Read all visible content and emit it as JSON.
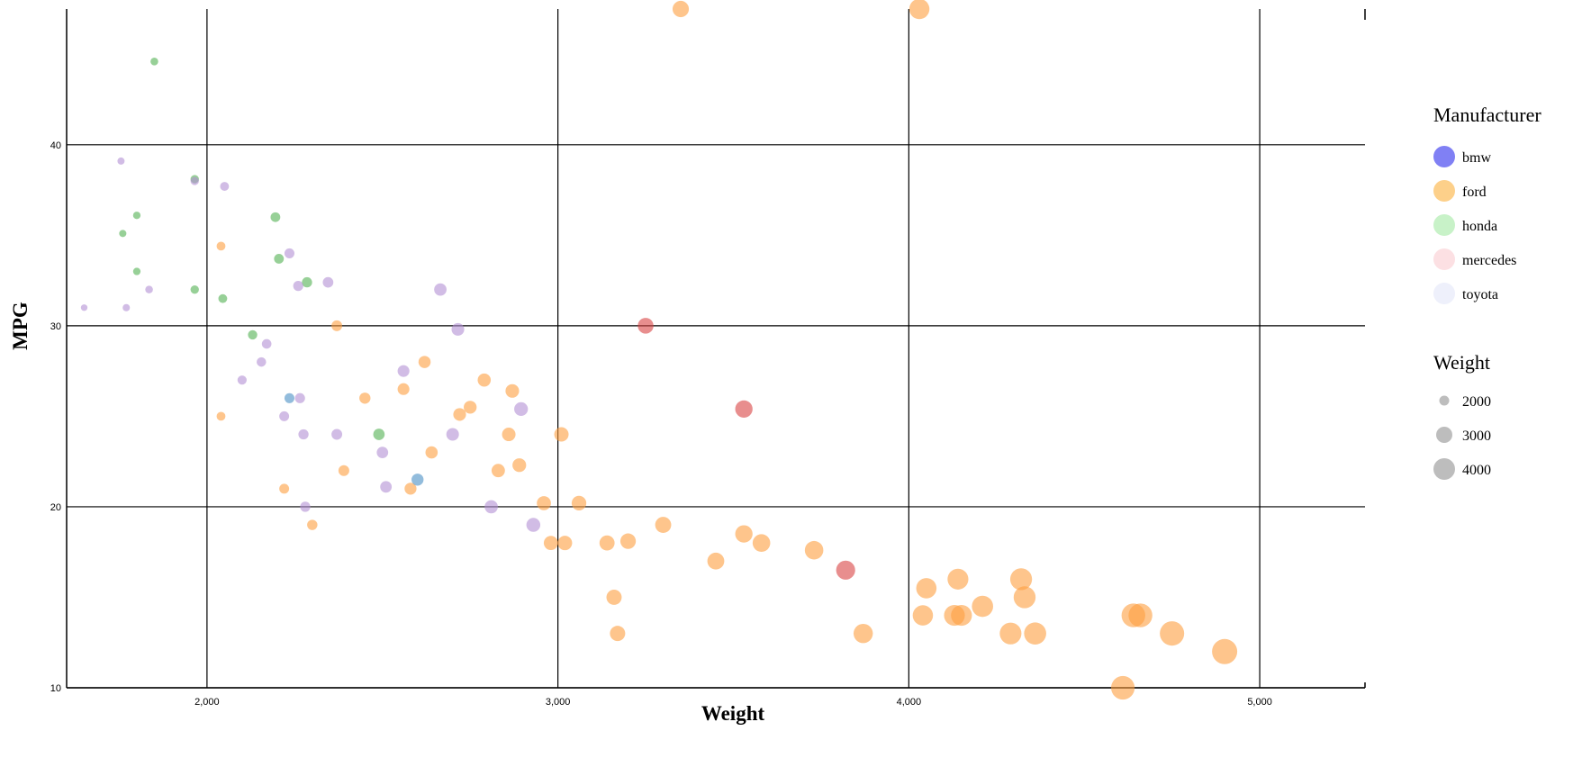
{
  "chart_data": {
    "type": "scatter",
    "title": "",
    "xlabel": "Weight",
    "ylabel": "MPG",
    "xlim": [
      1600,
      5300
    ],
    "ylim": [
      10,
      47.5
    ],
    "x_ticks": [
      2000,
      3000,
      4000,
      5000
    ],
    "x_tick_labels": [
      "2,000",
      "3,000",
      "4,000",
      "5,000"
    ],
    "y_ticks": [
      10,
      20,
      30,
      40
    ],
    "y_tick_labels": [
      "10",
      "20",
      "30",
      "40"
    ],
    "grid": true,
    "legend_position": "right",
    "color_legend": {
      "title": "Manufacturer",
      "items": [
        {
          "name": "bmw",
          "color": "#8080f4"
        },
        {
          "name": "ford",
          "color": "#fdd08a"
        },
        {
          "name": "honda",
          "color": "#c8f2c8"
        },
        {
          "name": "mercedes",
          "color": "#fce0e3"
        },
        {
          "name": "toyota",
          "color": "#eef0fb"
        }
      ]
    },
    "size_legend": {
      "title": "Weight",
      "items": [
        {
          "label": "2000",
          "value": 2000
        },
        {
          "label": "3000",
          "value": 3000
        },
        {
          "label": "4000",
          "value": 4000
        }
      ]
    },
    "series": [
      {
        "group": "ford",
        "color": "#fd9e3f",
        "points": [
          [
            3350,
            47.5
          ],
          [
            4030,
            47.5
          ],
          [
            2040,
            34.4
          ],
          [
            2370,
            30
          ],
          [
            2040,
            25
          ],
          [
            2220,
            21
          ],
          [
            2300,
            19
          ],
          [
            2390,
            22
          ],
          [
            2450,
            26
          ],
          [
            2560,
            26.5
          ],
          [
            2580,
            21
          ],
          [
            2620,
            28
          ],
          [
            2640,
            23
          ],
          [
            2720,
            25.1
          ],
          [
            2750,
            25.5
          ],
          [
            2790,
            27
          ],
          [
            2830,
            22
          ],
          [
            2860,
            24
          ],
          [
            2870,
            26.4
          ],
          [
            2890,
            22.3
          ],
          [
            2960,
            20.2
          ],
          [
            2980,
            18
          ],
          [
            3010,
            24
          ],
          [
            3020,
            18
          ],
          [
            3060,
            20.2
          ],
          [
            3140,
            18
          ],
          [
            3160,
            15
          ],
          [
            3170,
            13
          ],
          [
            3200,
            18.1
          ],
          [
            3300,
            19
          ],
          [
            3450,
            17
          ],
          [
            3530,
            18.5
          ],
          [
            3580,
            18
          ],
          [
            3730,
            17.6
          ],
          [
            3870,
            13
          ],
          [
            4040,
            14
          ],
          [
            4050,
            15.5
          ],
          [
            4130,
            14
          ],
          [
            4140,
            16
          ],
          [
            4150,
            14
          ],
          [
            4210,
            14.5
          ],
          [
            4290,
            13
          ],
          [
            4320,
            16
          ],
          [
            4330,
            15
          ],
          [
            4360,
            13
          ],
          [
            4610,
            10
          ],
          [
            4640,
            14
          ],
          [
            4660,
            14
          ],
          [
            4750,
            13
          ],
          [
            4900,
            12
          ]
        ]
      },
      {
        "group": "honda",
        "color": "#52b052",
        "points": [
          [
            1850,
            44.6
          ],
          [
            1760,
            35.1
          ],
          [
            1800,
            36.1
          ],
          [
            1800,
            33
          ],
          [
            1965,
            38.1
          ],
          [
            1965,
            32
          ],
          [
            2045,
            31.5
          ],
          [
            2130,
            29.5
          ],
          [
            2195,
            36
          ],
          [
            2205,
            33.7
          ],
          [
            2285,
            32.4
          ],
          [
            2490,
            24
          ]
        ]
      },
      {
        "group": "toyota",
        "color": "#b38fd4",
        "points": [
          [
            1650,
            31
          ],
          [
            1755,
            39.1
          ],
          [
            1770,
            31
          ],
          [
            1835,
            32
          ],
          [
            1965,
            38
          ],
          [
            2050,
            37.7
          ],
          [
            2100,
            27
          ],
          [
            2155,
            28
          ],
          [
            2170,
            29
          ],
          [
            2220,
            25
          ],
          [
            2235,
            34
          ],
          [
            2265,
            26
          ],
          [
            2260,
            32.2
          ],
          [
            2275,
            24
          ],
          [
            2280,
            20
          ],
          [
            2345,
            32.4
          ],
          [
            2370,
            24
          ],
          [
            2500,
            23
          ],
          [
            2510,
            21.1
          ],
          [
            2560,
            27.5
          ],
          [
            2665,
            32
          ],
          [
            2700,
            24
          ],
          [
            2715,
            29.8
          ],
          [
            2810,
            20
          ],
          [
            2895,
            25.4
          ],
          [
            2930,
            19
          ]
        ]
      },
      {
        "group": "mercedes",
        "color": "#d94343",
        "points": [
          [
            3250,
            30
          ],
          [
            3530,
            25.4
          ],
          [
            3820,
            16.5
          ]
        ]
      },
      {
        "group": "bmw",
        "color": "#4a90c4",
        "points": [
          [
            2235,
            26
          ],
          [
            2600,
            21.5
          ]
        ]
      }
    ]
  }
}
